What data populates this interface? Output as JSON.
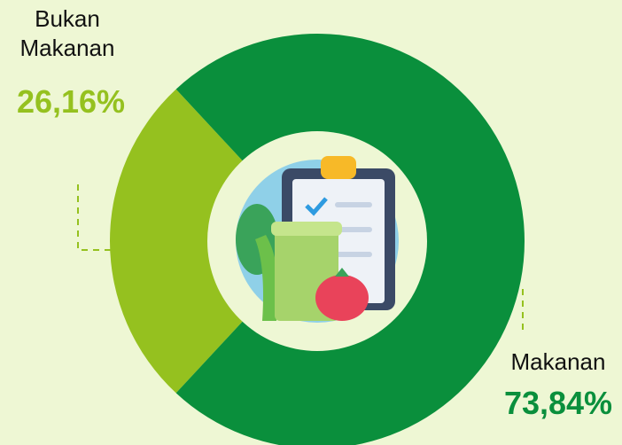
{
  "chart_data": {
    "type": "donut",
    "categories": [
      "Bukan Makanan",
      "Makanan"
    ],
    "values": [
      26.16,
      73.84
    ],
    "value_labels": [
      "26,16%",
      "73,84%"
    ],
    "colors": [
      "#95c11f",
      "#0a8f3c"
    ]
  }
}
